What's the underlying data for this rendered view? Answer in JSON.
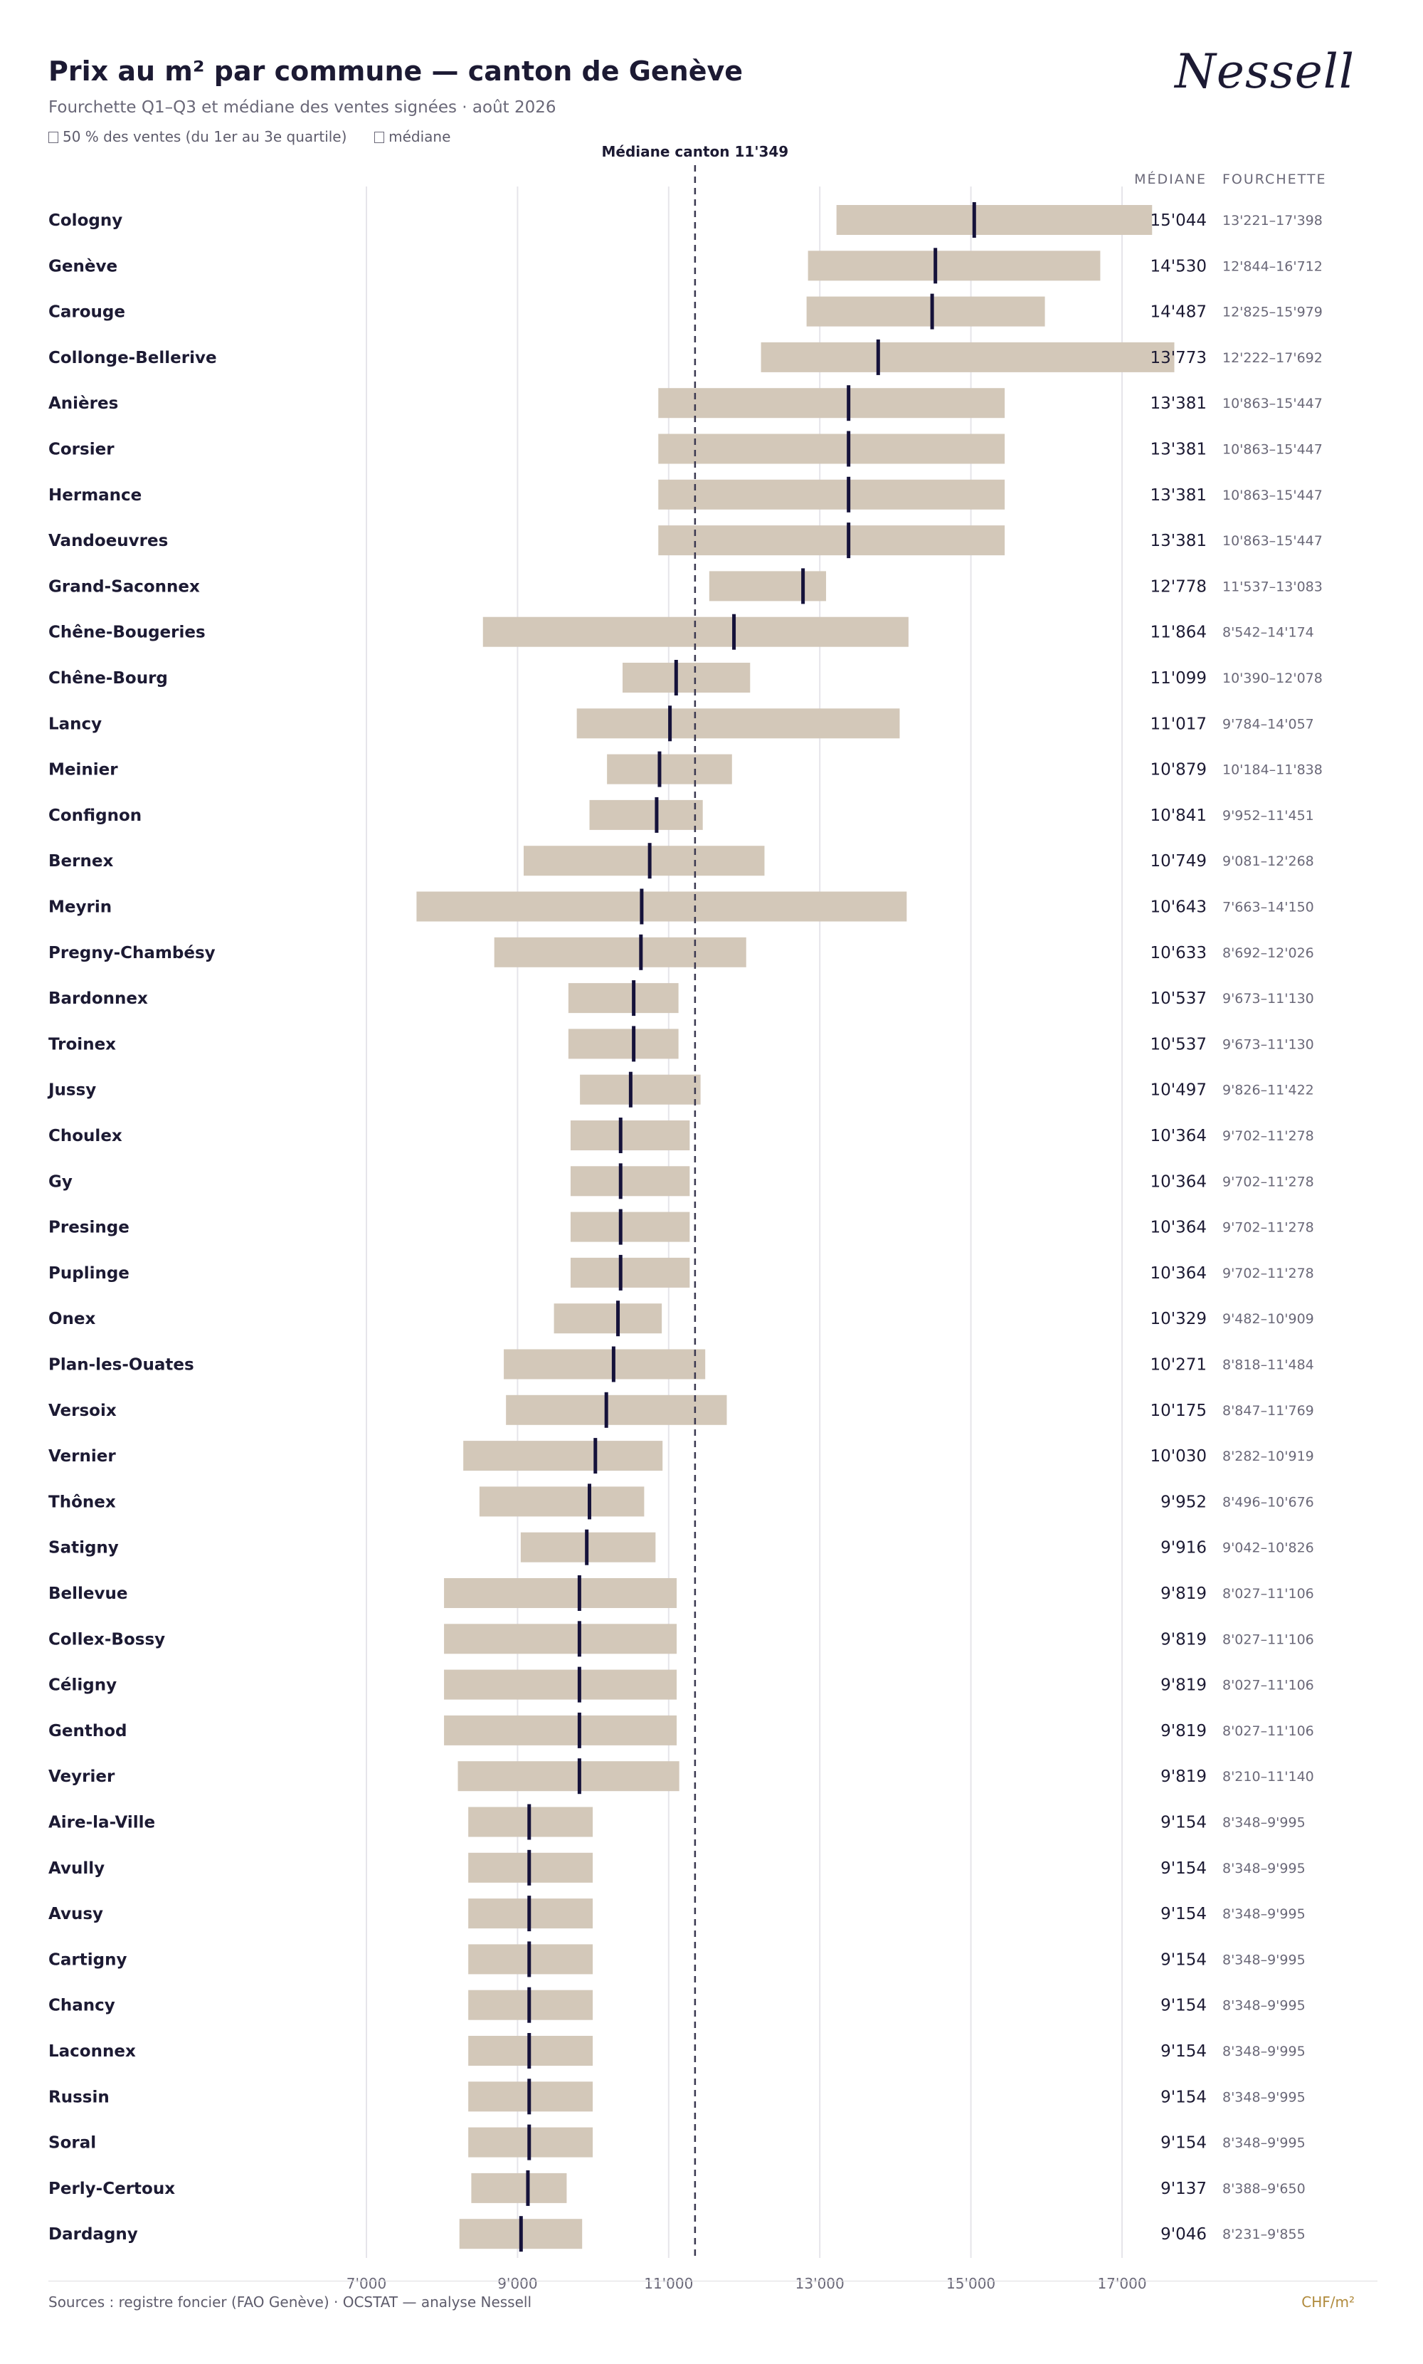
{
  "brand": {
    "logo_text": "Nessell"
  },
  "header": {
    "title": "Prix au m² par commune — canton de Genève",
    "subtitle": "Fourchette Q1–Q3 et médiane des ventes signées · août 2026",
    "legend_range": "50 % des ventes (du 1er au 3e quartile)",
    "legend_median": "médiane"
  },
  "footer": {
    "source": "Sources : registre foncier (FAO Genève) · OCSTAT — analyse Nessell",
    "unit": "CHF/m²"
  },
  "colors": {
    "bar": "#d3c8b9",
    "median": "#15123a",
    "grid": "#e6e5ea",
    "text": "#1c1a33",
    "muted": "#6a6878"
  },
  "chart_data": {
    "type": "bar",
    "orientation": "horizontal",
    "xlim": [
      7000,
      17000
    ],
    "x_ticks": [
      7000,
      9000,
      11000,
      13000,
      15000,
      17000
    ],
    "x_tick_labels": [
      "7'000",
      "9'000",
      "11'000",
      "13'000",
      "15'000",
      "17'000"
    ],
    "reference_line": {
      "value": 11349,
      "label": "Médiane canton 11'349"
    },
    "column_headers": {
      "median": "MÉDIANE",
      "range": "FOURCHETTE"
    },
    "grid": true,
    "rows": [
      {
        "commune": "Cologny",
        "q1": 13221,
        "median": 15044,
        "q3": 17398,
        "median_label": "15'044",
        "range_label": "13'221–17'398"
      },
      {
        "commune": "Genève",
        "q1": 12844,
        "median": 14530,
        "q3": 16712,
        "median_label": "14'530",
        "range_label": "12'844–16'712"
      },
      {
        "commune": "Carouge",
        "q1": 12825,
        "median": 14487,
        "q3": 15979,
        "median_label": "14'487",
        "range_label": "12'825–15'979"
      },
      {
        "commune": "Collonge-Bellerive",
        "q1": 12222,
        "median": 13773,
        "q3": 17692,
        "median_label": "13'773",
        "range_label": "12'222–17'692"
      },
      {
        "commune": "Anières",
        "q1": 10863,
        "median": 13381,
        "q3": 15447,
        "median_label": "13'381",
        "range_label": "10'863–15'447"
      },
      {
        "commune": "Corsier",
        "q1": 10863,
        "median": 13381,
        "q3": 15447,
        "median_label": "13'381",
        "range_label": "10'863–15'447"
      },
      {
        "commune": "Hermance",
        "q1": 10863,
        "median": 13381,
        "q3": 15447,
        "median_label": "13'381",
        "range_label": "10'863–15'447"
      },
      {
        "commune": "Vandoeuvres",
        "q1": 10863,
        "median": 13381,
        "q3": 15447,
        "median_label": "13'381",
        "range_label": "10'863–15'447"
      },
      {
        "commune": "Grand-Saconnex",
        "q1": 11537,
        "median": 12778,
        "q3": 13083,
        "median_label": "12'778",
        "range_label": "11'537–13'083"
      },
      {
        "commune": "Chêne-Bougeries",
        "q1": 8542,
        "median": 11864,
        "q3": 14174,
        "median_label": "11'864",
        "range_label": "8'542–14'174"
      },
      {
        "commune": "Chêne-Bourg",
        "q1": 10390,
        "median": 11099,
        "q3": 12078,
        "median_label": "11'099",
        "range_label": "10'390–12'078"
      },
      {
        "commune": "Lancy",
        "q1": 9784,
        "median": 11017,
        "q3": 14057,
        "median_label": "11'017",
        "range_label": "9'784–14'057"
      },
      {
        "commune": "Meinier",
        "q1": 10184,
        "median": 10879,
        "q3": 11838,
        "median_label": "10'879",
        "range_label": "10'184–11'838"
      },
      {
        "commune": "Confignon",
        "q1": 9952,
        "median": 10841,
        "q3": 11451,
        "median_label": "10'841",
        "range_label": "9'952–11'451"
      },
      {
        "commune": "Bernex",
        "q1": 9081,
        "median": 10749,
        "q3": 12268,
        "median_label": "10'749",
        "range_label": "9'081–12'268"
      },
      {
        "commune": "Meyrin",
        "q1": 7663,
        "median": 10643,
        "q3": 14150,
        "median_label": "10'643",
        "range_label": "7'663–14'150"
      },
      {
        "commune": "Pregny-Chambésy",
        "q1": 8692,
        "median": 10633,
        "q3": 12026,
        "median_label": "10'633",
        "range_label": "8'692–12'026"
      },
      {
        "commune": "Bardonnex",
        "q1": 9673,
        "median": 10537,
        "q3": 11130,
        "median_label": "10'537",
        "range_label": "9'673–11'130"
      },
      {
        "commune": "Troinex",
        "q1": 9673,
        "median": 10537,
        "q3": 11130,
        "median_label": "10'537",
        "range_label": "9'673–11'130"
      },
      {
        "commune": "Jussy",
        "q1": 9826,
        "median": 10497,
        "q3": 11422,
        "median_label": "10'497",
        "range_label": "9'826–11'422"
      },
      {
        "commune": "Choulex",
        "q1": 9702,
        "median": 10364,
        "q3": 11278,
        "median_label": "10'364",
        "range_label": "9'702–11'278"
      },
      {
        "commune": "Gy",
        "q1": 9702,
        "median": 10364,
        "q3": 11278,
        "median_label": "10'364",
        "range_label": "9'702–11'278"
      },
      {
        "commune": "Presinge",
        "q1": 9702,
        "median": 10364,
        "q3": 11278,
        "median_label": "10'364",
        "range_label": "9'702–11'278"
      },
      {
        "commune": "Puplinge",
        "q1": 9702,
        "median": 10364,
        "q3": 11278,
        "median_label": "10'364",
        "range_label": "9'702–11'278"
      },
      {
        "commune": "Onex",
        "q1": 9482,
        "median": 10329,
        "q3": 10909,
        "median_label": "10'329",
        "range_label": "9'482–10'909"
      },
      {
        "commune": "Plan-les-Ouates",
        "q1": 8818,
        "median": 10271,
        "q3": 11484,
        "median_label": "10'271",
        "range_label": "8'818–11'484"
      },
      {
        "commune": "Versoix",
        "q1": 8847,
        "median": 10175,
        "q3": 11769,
        "median_label": "10'175",
        "range_label": "8'847–11'769"
      },
      {
        "commune": "Vernier",
        "q1": 8282,
        "median": 10030,
        "q3": 10919,
        "median_label": "10'030",
        "range_label": "8'282–10'919"
      },
      {
        "commune": "Thônex",
        "q1": 8496,
        "median": 9952,
        "q3": 10676,
        "median_label": "9'952",
        "range_label": "8'496–10'676"
      },
      {
        "commune": "Satigny",
        "q1": 9042,
        "median": 9916,
        "q3": 10826,
        "median_label": "9'916",
        "range_label": "9'042–10'826"
      },
      {
        "commune": "Bellevue",
        "q1": 8027,
        "median": 9819,
        "q3": 11106,
        "median_label": "9'819",
        "range_label": "8'027–11'106"
      },
      {
        "commune": "Collex-Bossy",
        "q1": 8027,
        "median": 9819,
        "q3": 11106,
        "median_label": "9'819",
        "range_label": "8'027–11'106"
      },
      {
        "commune": "Céligny",
        "q1": 8027,
        "median": 9819,
        "q3": 11106,
        "median_label": "9'819",
        "range_label": "8'027–11'106"
      },
      {
        "commune": "Genthod",
        "q1": 8027,
        "median": 9819,
        "q3": 11106,
        "median_label": "9'819",
        "range_label": "8'027–11'106"
      },
      {
        "commune": "Veyrier",
        "q1": 8210,
        "median": 9819,
        "q3": 11140,
        "median_label": "9'819",
        "range_label": "8'210–11'140"
      },
      {
        "commune": "Aire-la-Ville",
        "q1": 8348,
        "median": 9154,
        "q3": 9995,
        "median_label": "9'154",
        "range_label": "8'348–9'995"
      },
      {
        "commune": "Avully",
        "q1": 8348,
        "median": 9154,
        "q3": 9995,
        "median_label": "9'154",
        "range_label": "8'348–9'995"
      },
      {
        "commune": "Avusy",
        "q1": 8348,
        "median": 9154,
        "q3": 9995,
        "median_label": "9'154",
        "range_label": "8'348–9'995"
      },
      {
        "commune": "Cartigny",
        "q1": 8348,
        "median": 9154,
        "q3": 9995,
        "median_label": "9'154",
        "range_label": "8'348–9'995"
      },
      {
        "commune": "Chancy",
        "q1": 8348,
        "median": 9154,
        "q3": 9995,
        "median_label": "9'154",
        "range_label": "8'348–9'995"
      },
      {
        "commune": "Laconnex",
        "q1": 8348,
        "median": 9154,
        "q3": 9995,
        "median_label": "9'154",
        "range_label": "8'348–9'995"
      },
      {
        "commune": "Russin",
        "q1": 8348,
        "median": 9154,
        "q3": 9995,
        "median_label": "9'154",
        "range_label": "8'348–9'995"
      },
      {
        "commune": "Soral",
        "q1": 8348,
        "median": 9154,
        "q3": 9995,
        "median_label": "9'154",
        "range_label": "8'348–9'995"
      },
      {
        "commune": "Perly-Certoux",
        "q1": 8388,
        "median": 9137,
        "q3": 9650,
        "median_label": "9'137",
        "range_label": "8'388–9'650"
      },
      {
        "commune": "Dardagny",
        "q1": 8231,
        "median": 9046,
        "q3": 9855,
        "median_label": "9'046",
        "range_label": "8'231–9'855"
      }
    ]
  }
}
